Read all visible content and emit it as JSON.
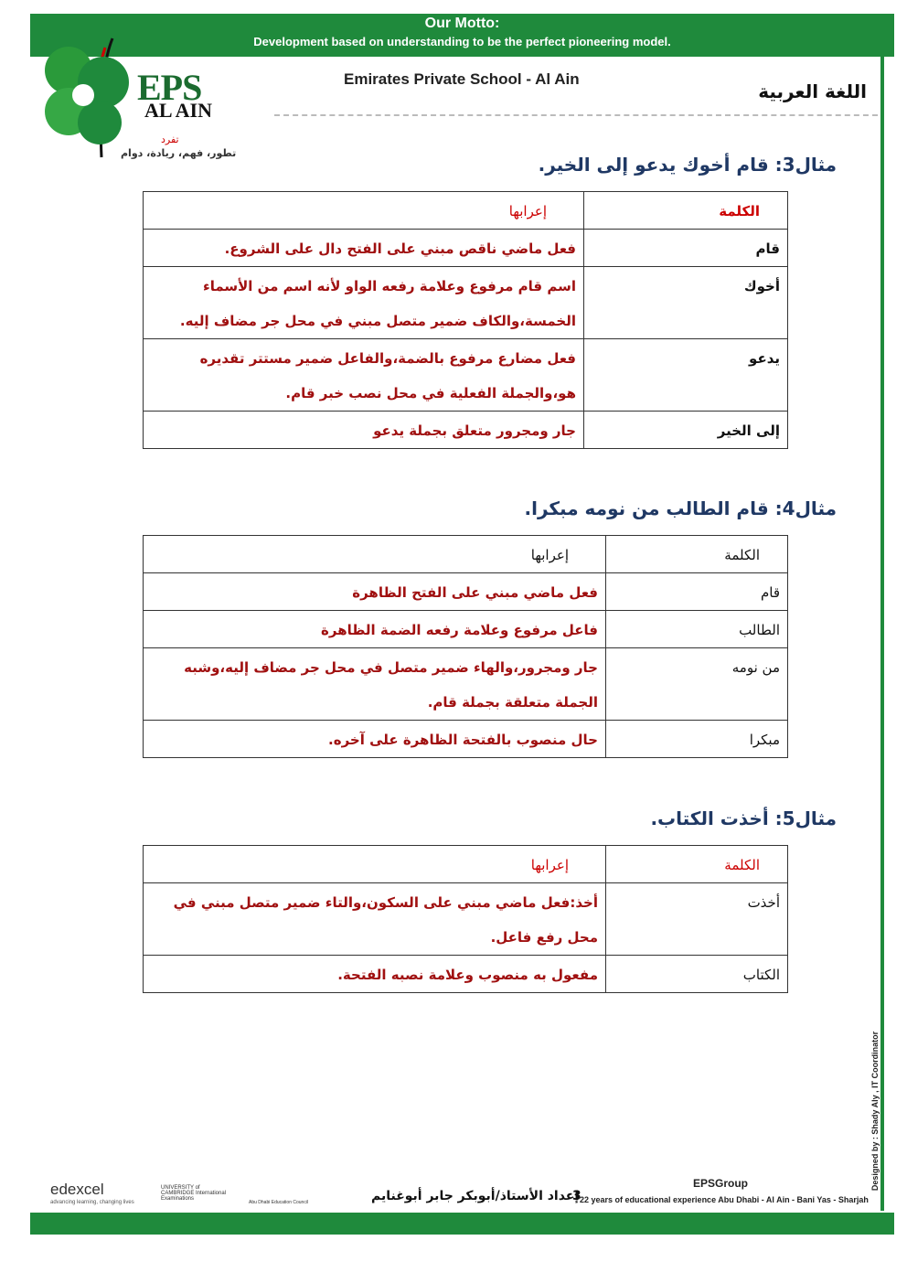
{
  "header": {
    "motto_title": "Our Motto:",
    "motto": "Development based on understanding to be the perfect pioneering model.",
    "school": "Emirates Private School - Al Ain",
    "subject": "اللغة العربية"
  },
  "logo": {
    "name": "EPS",
    "city": "AL AIN",
    "tagline": "تفرد",
    "slogan": "تطور، فهم، ريادة، دوام"
  },
  "examples": [
    {
      "heading": "مثال3: قام أخوك يدعو إلى الخير.",
      "columns": [
        "الكلمة",
        "إعرابها"
      ],
      "rows": [
        [
          "قام",
          "فعل ماضي ناقص مبني على الفتح دال على الشروع."
        ],
        [
          "أخوك",
          "اسم قام مرفوع وعلامة رفعه الواو لأنه اسم من الأسماء الخمسة،والكاف ضمير متصل مبني في محل جر مضاف إليه."
        ],
        [
          "يدعو",
          "فعل مضارع مرفوع بالضمة،والفاعل ضمير مستتر تقديره هو،والجملة الفعلية في محل نصب خبر قام."
        ],
        [
          "إلى الخير",
          "جار ومجرور متعلق بجملة يدعو"
        ]
      ]
    },
    {
      "heading": "مثال4: قام الطالب من نومه مبكرا.",
      "columns": [
        "الكلمة",
        "إعرابها"
      ],
      "rows": [
        [
          "قام",
          "فعل ماضي مبني على الفتح الظاهرة"
        ],
        [
          "الطالب",
          "فاعل مرفوع وعلامة رفعه الضمة الظاهرة"
        ],
        [
          "من نومه",
          "جار ومجرور،والهاء ضمير متصل في محل جر مضاف إليه،وشبه الجملة متعلقة بجملة قام."
        ],
        [
          "مبكرا",
          "حال منصوب بالفتحة الظاهرة على آخره."
        ]
      ]
    },
    {
      "heading": "مثال5: أخذت الكتاب.",
      "columns": [
        "الكلمة",
        "إعرابها"
      ],
      "rows": [
        [
          "أخذت",
          "أخذ:فعل ماضي مبني على السكون،والتاء ضمير متصل مبني في محل رفع فاعل."
        ],
        [
          "الكتاب",
          "مفعول به منصوب وعلامة نصبه الفتحة."
        ]
      ]
    }
  ],
  "footer": {
    "edexcel": "edexcel",
    "edexcel_tag": "advancing learning, changing lives",
    "cambridge": "UNIVERSITY of CAMBRIDGE International Examinations",
    "adec": "Abu Dhabi Education Council",
    "group": "EPSGroup",
    "experience": "22 years of educational experience Abu Dhabi - Al Ain - Bani Yas - Sharjah",
    "author": "إعداد الأستاذ/أبوبكر جابر أبوغنايم",
    "page": "3",
    "designer": "Designed by : Shady Aly , IT Coordinator"
  }
}
